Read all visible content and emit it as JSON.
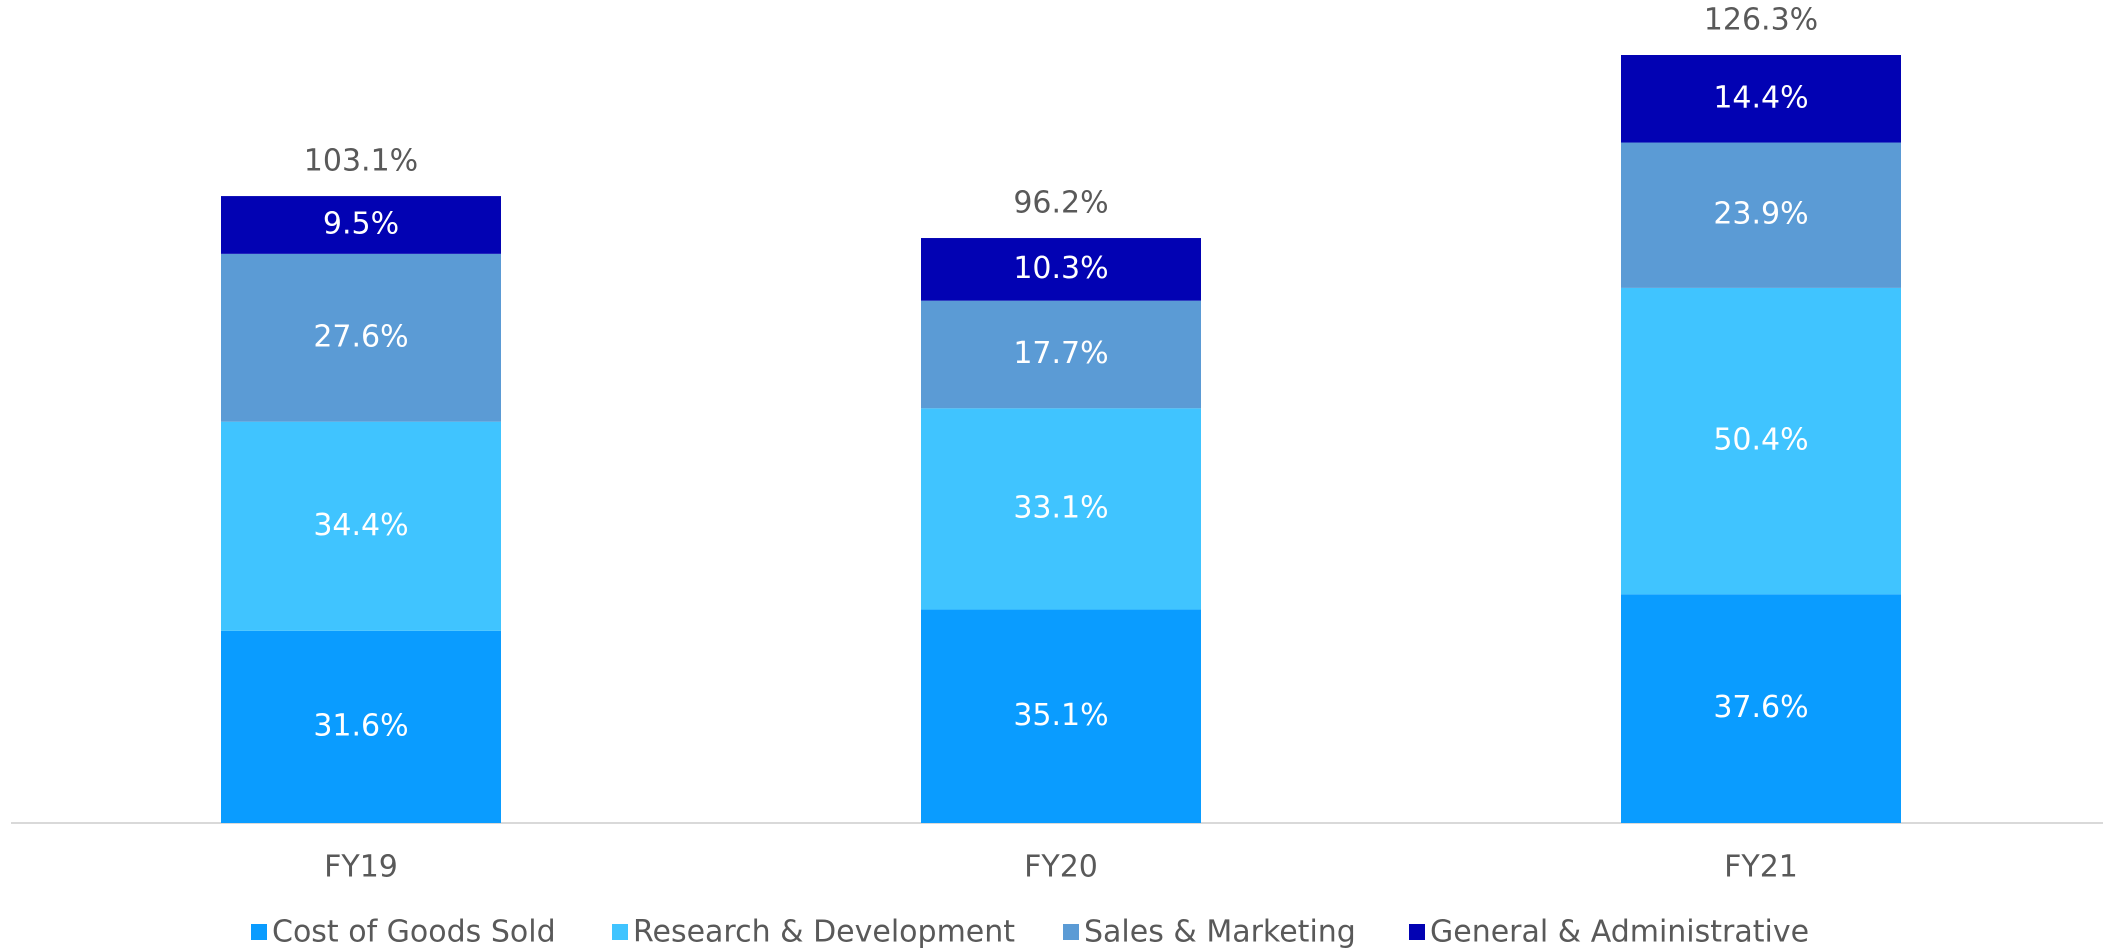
{
  "chart_data": {
    "type": "stacked_bar",
    "categories": [
      "FY19",
      "FY20",
      "FY21"
    ],
    "series": [
      {
        "name": "Cost of Goods Sold",
        "color": "#0a9cff",
        "values": [
          31.6,
          35.1,
          37.6
        ],
        "value_labels": [
          "31.6%",
          "35.1%",
          "37.6%"
        ]
      },
      {
        "name": "Research & Development",
        "color": "#40c4ff",
        "values": [
          34.4,
          33.1,
          50.4
        ],
        "value_labels": [
          "34.4%",
          "33.1%",
          "50.4%"
        ]
      },
      {
        "name": "Sales & Marketing",
        "color": "#5b9bd5",
        "values": [
          27.6,
          17.7,
          23.9
        ],
        "value_labels": [
          "27.6%",
          "17.7%",
          "23.9%"
        ]
      },
      {
        "name": "General & Administrative",
        "color": "#0202b3",
        "values": [
          9.5,
          10.3,
          14.4
        ],
        "value_labels": [
          "9.5%",
          "10.3%",
          "14.4%"
        ]
      }
    ],
    "totals": [
      103.1,
      96.2,
      126.3
    ],
    "total_labels": [
      "103.1%",
      "96.2%",
      "126.3%"
    ],
    "legend": "bottom"
  }
}
